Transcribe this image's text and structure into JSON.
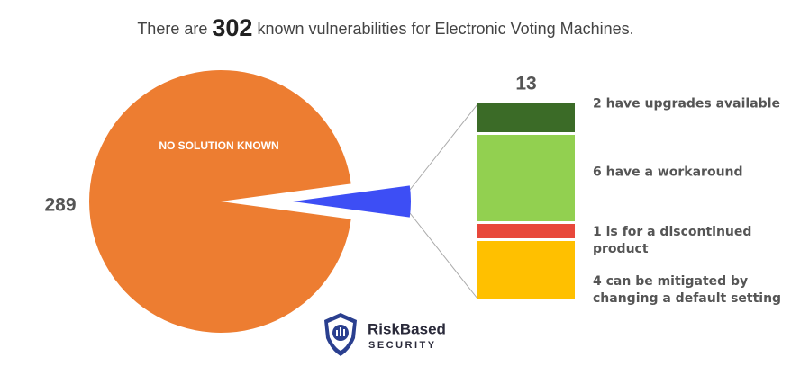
{
  "chart_data": {
    "type": "pie",
    "title_prefix": "There are",
    "total": 302,
    "title_suffix": "known vulnerabilities for Electronic Voting Machines.",
    "categories": [
      "NO SOLUTION KNOWN",
      null
    ],
    "values": [
      289,
      13
    ],
    "colors": [
      "#ed7d31",
      "#3d4ef5"
    ],
    "breakdown": {
      "labels": [
        "2 have upgrades available",
        "6 have a workaround",
        "1 is for a discontinued product",
        "4 can be mitigated by changing a default setting"
      ],
      "values": [
        2,
        6,
        1,
        4
      ],
      "colors": [
        "#3b6b27",
        "#92d050",
        "#e8483b",
        "#ffc000"
      ]
    },
    "logo": {
      "name": "RiskBased",
      "tagline": "SECURITY"
    }
  }
}
